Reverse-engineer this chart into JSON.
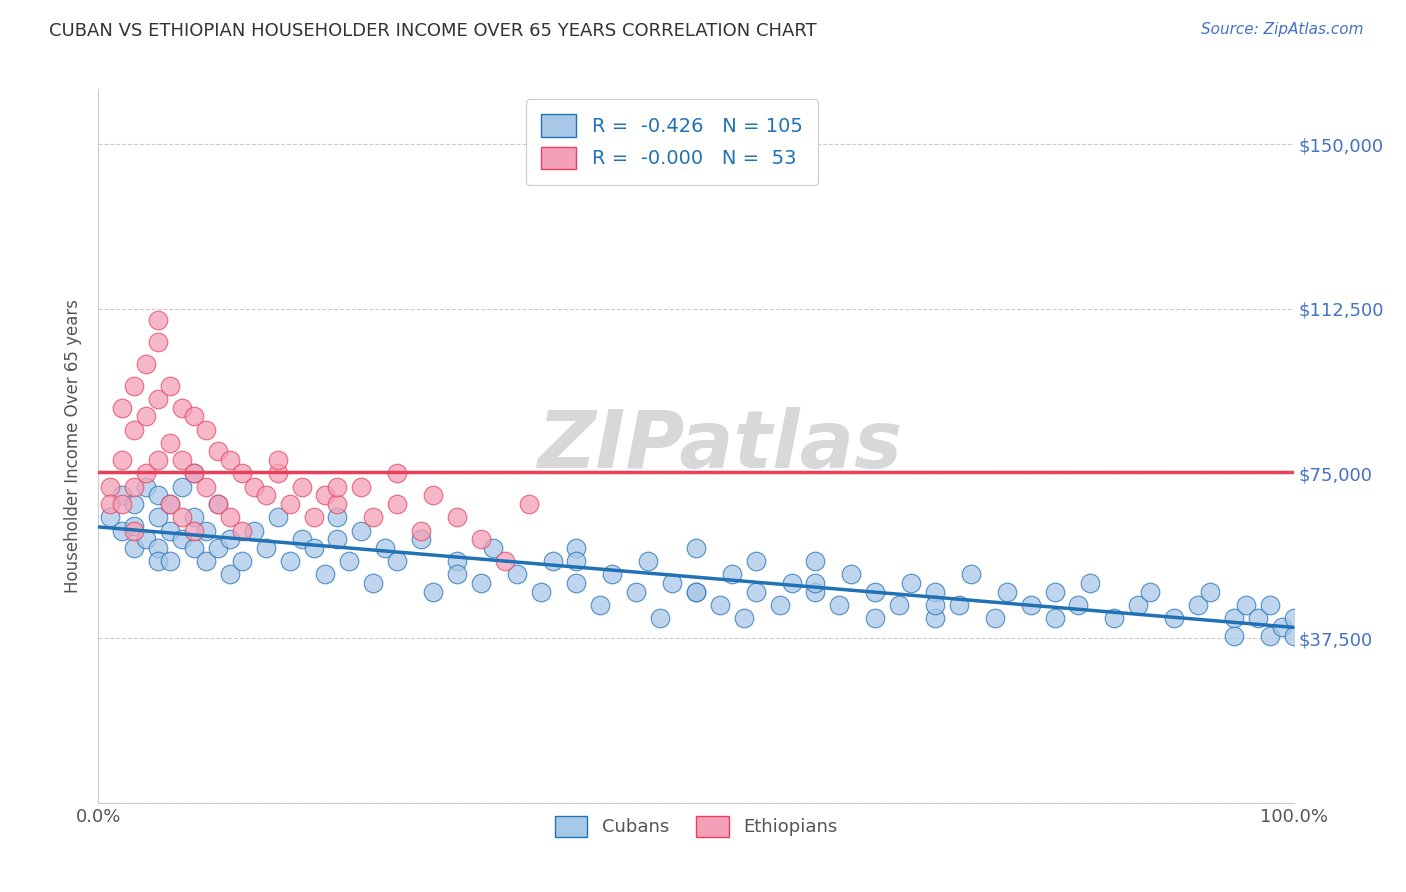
{
  "title": "CUBAN VS ETHIOPIAN HOUSEHOLDER INCOME OVER 65 YEARS CORRELATION CHART",
  "source_text": "Source: ZipAtlas.com",
  "ylabel": "Householder Income Over 65 years",
  "watermark": "ZIPatlas",
  "xlim": [
    0.0,
    1.0
  ],
  "ylim": [
    0,
    162500
  ],
  "yticks": [
    0,
    37500,
    75000,
    112500,
    150000
  ],
  "ytick_labels": [
    "",
    "$37,500",
    "$75,000",
    "$112,500",
    "$150,000"
  ],
  "xticks": [
    0.0,
    1.0
  ],
  "xtick_labels": [
    "0.0%",
    "100.0%"
  ],
  "cuban_R": "-0.426",
  "cuban_N": "105",
  "ethiopian_R": "-0.000",
  "ethiopian_N": "53",
  "blue_color": "#a8c8e8",
  "pink_color": "#f4a0b8",
  "blue_line_color": "#2171b5",
  "pink_line_color": "#e8405a",
  "title_color": "#333333",
  "axis_label_color": "#555555",
  "right_tick_color": "#4472c4",
  "background_color": "#ffffff",
  "grid_color": "#cccccc",
  "cubans_x": [
    0.01,
    0.02,
    0.02,
    0.03,
    0.03,
    0.03,
    0.04,
    0.04,
    0.05,
    0.05,
    0.05,
    0.05,
    0.06,
    0.06,
    0.06,
    0.07,
    0.07,
    0.08,
    0.08,
    0.08,
    0.09,
    0.09,
    0.1,
    0.1,
    0.11,
    0.11,
    0.12,
    0.13,
    0.14,
    0.15,
    0.16,
    0.17,
    0.18,
    0.19,
    0.2,
    0.21,
    0.22,
    0.23,
    0.24,
    0.25,
    0.27,
    0.28,
    0.3,
    0.32,
    0.33,
    0.35,
    0.37,
    0.38,
    0.4,
    0.4,
    0.42,
    0.43,
    0.45,
    0.46,
    0.47,
    0.48,
    0.5,
    0.5,
    0.52,
    0.53,
    0.54,
    0.55,
    0.55,
    0.57,
    0.58,
    0.6,
    0.6,
    0.62,
    0.63,
    0.65,
    0.65,
    0.67,
    0.68,
    0.7,
    0.7,
    0.72,
    0.73,
    0.75,
    0.76,
    0.78,
    0.8,
    0.8,
    0.82,
    0.83,
    0.85,
    0.87,
    0.88,
    0.9,
    0.92,
    0.93,
    0.95,
    0.95,
    0.96,
    0.97,
    0.98,
    0.98,
    0.99,
    1.0,
    1.0,
    0.6,
    0.7,
    0.4,
    0.5,
    0.3,
    0.2
  ],
  "cubans_y": [
    65000,
    62000,
    70000,
    63000,
    68000,
    58000,
    72000,
    60000,
    65000,
    58000,
    55000,
    70000,
    62000,
    68000,
    55000,
    72000,
    60000,
    65000,
    58000,
    75000,
    62000,
    55000,
    68000,
    58000,
    60000,
    52000,
    55000,
    62000,
    58000,
    65000,
    55000,
    60000,
    58000,
    52000,
    65000,
    55000,
    62000,
    50000,
    58000,
    55000,
    60000,
    48000,
    55000,
    50000,
    58000,
    52000,
    48000,
    55000,
    50000,
    58000,
    45000,
    52000,
    48000,
    55000,
    42000,
    50000,
    48000,
    58000,
    45000,
    52000,
    42000,
    48000,
    55000,
    45000,
    50000,
    48000,
    55000,
    45000,
    52000,
    42000,
    48000,
    45000,
    50000,
    42000,
    48000,
    45000,
    52000,
    42000,
    48000,
    45000,
    42000,
    48000,
    45000,
    50000,
    42000,
    45000,
    48000,
    42000,
    45000,
    48000,
    42000,
    38000,
    45000,
    42000,
    38000,
    45000,
    40000,
    42000,
    38000,
    50000,
    45000,
    55000,
    48000,
    52000,
    60000
  ],
  "ethiopians_x": [
    0.01,
    0.01,
    0.02,
    0.02,
    0.02,
    0.03,
    0.03,
    0.03,
    0.03,
    0.04,
    0.04,
    0.04,
    0.05,
    0.05,
    0.05,
    0.05,
    0.06,
    0.06,
    0.06,
    0.07,
    0.07,
    0.07,
    0.08,
    0.08,
    0.08,
    0.09,
    0.09,
    0.1,
    0.1,
    0.11,
    0.11,
    0.12,
    0.12,
    0.13,
    0.14,
    0.15,
    0.16,
    0.17,
    0.18,
    0.19,
    0.2,
    0.22,
    0.23,
    0.25,
    0.27,
    0.28,
    0.3,
    0.32,
    0.34,
    0.36,
    0.25,
    0.2,
    0.15
  ],
  "ethiopians_y": [
    72000,
    68000,
    90000,
    78000,
    68000,
    95000,
    85000,
    72000,
    62000,
    100000,
    88000,
    75000,
    110000,
    105000,
    92000,
    78000,
    95000,
    82000,
    68000,
    90000,
    78000,
    65000,
    88000,
    75000,
    62000,
    85000,
    72000,
    80000,
    68000,
    78000,
    65000,
    75000,
    62000,
    72000,
    70000,
    75000,
    68000,
    72000,
    65000,
    70000,
    68000,
    72000,
    65000,
    68000,
    62000,
    70000,
    65000,
    60000,
    55000,
    68000,
    75000,
    72000,
    78000
  ]
}
